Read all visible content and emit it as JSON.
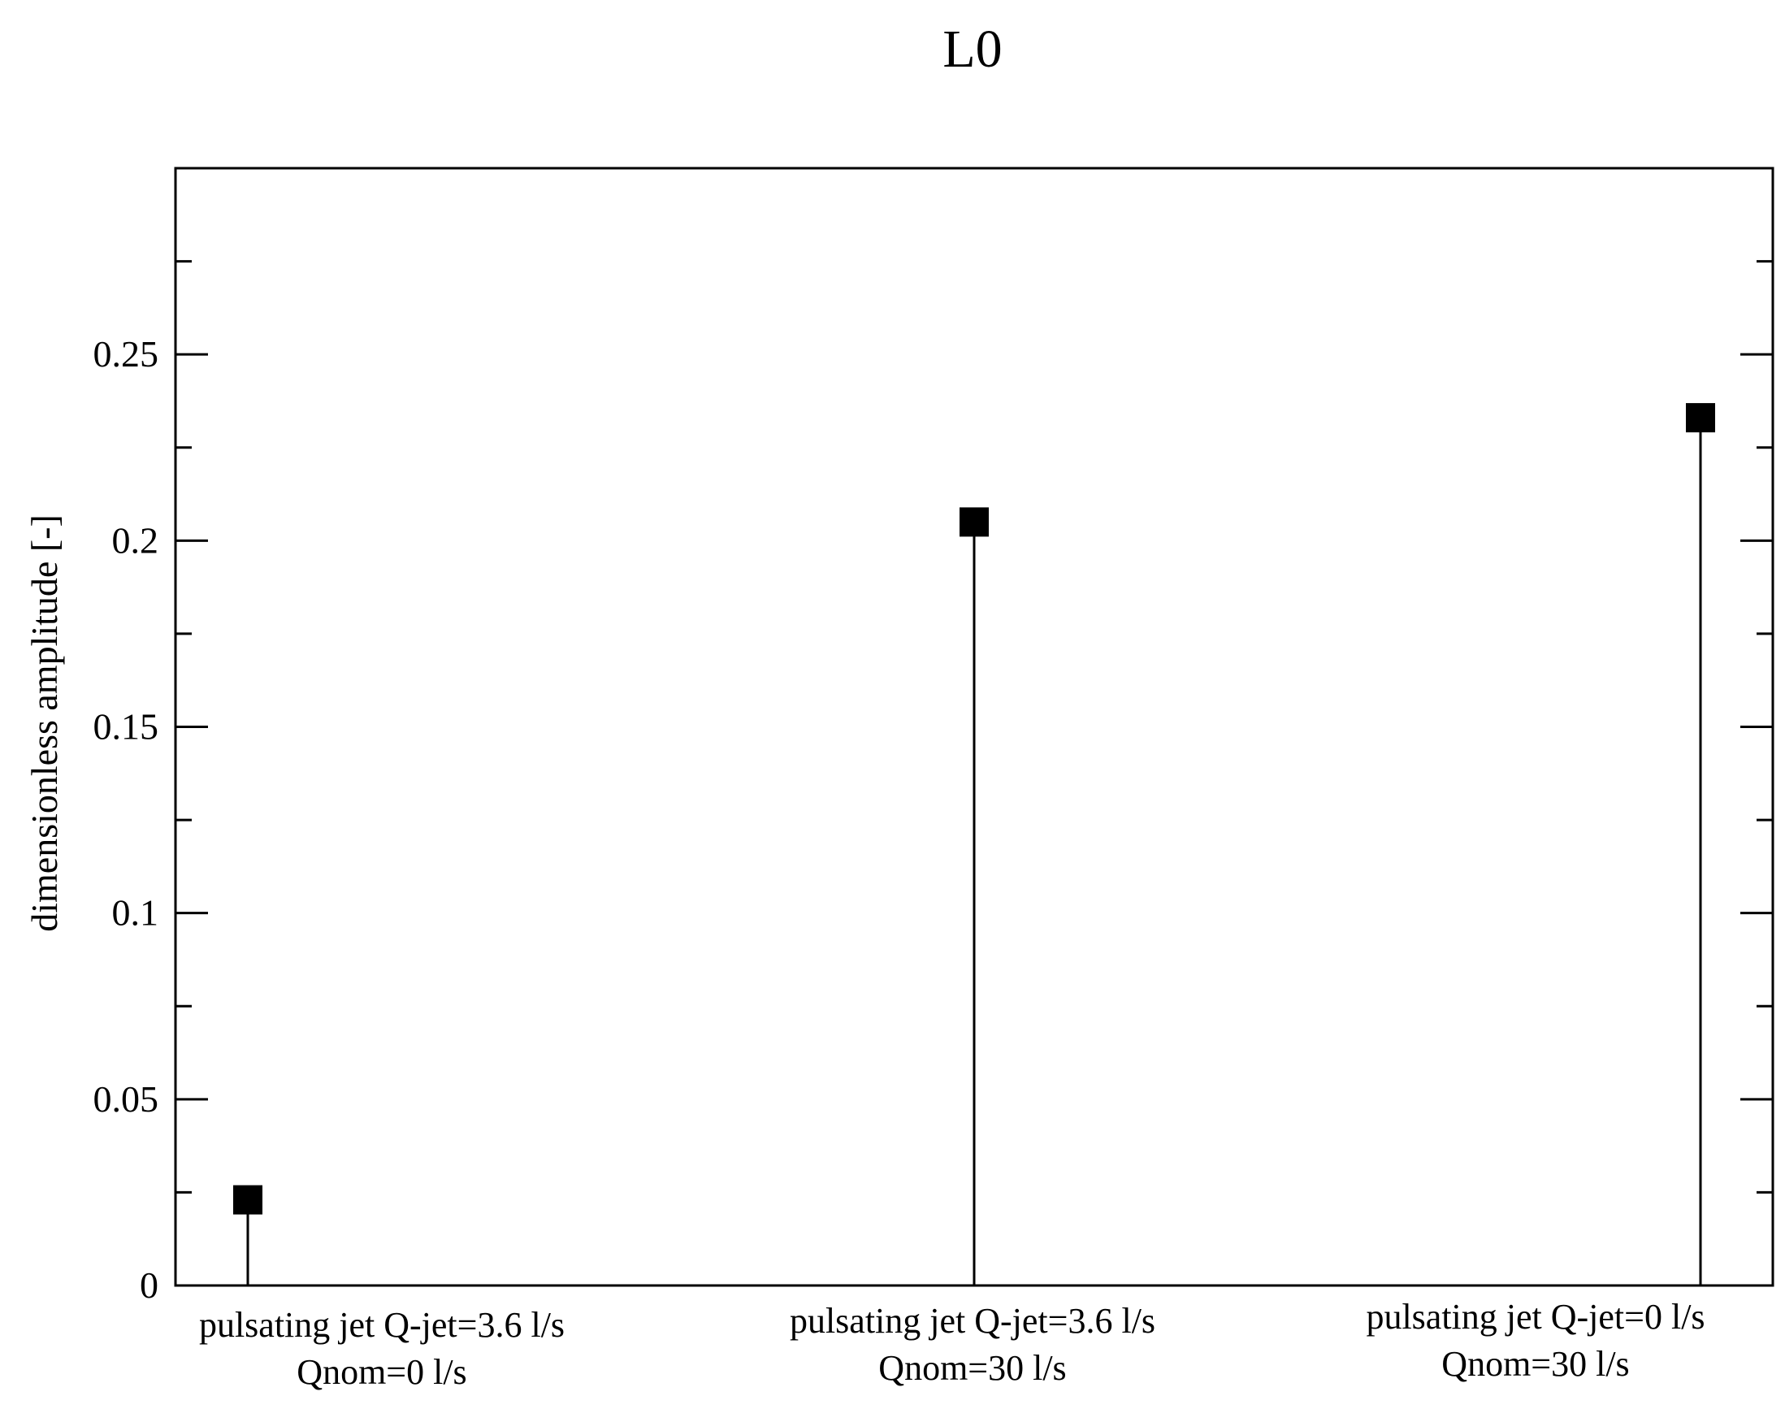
{
  "chart_data": {
    "type": "scatter",
    "style": "drop-line (stem) with square markers",
    "title": "L0",
    "xlabel": "",
    "ylabel": "dimensionless amplitude [-]",
    "ylim": [
      0,
      0.3
    ],
    "yticks": [
      "0",
      "0.05",
      "0.1",
      "0.15",
      "0.2",
      "0.25"
    ],
    "ytick_values": [
      0,
      0.05,
      0.1,
      0.15,
      0.2,
      0.25
    ],
    "y_minor_step": 0.025,
    "categories": [
      [
        "pulsating jet Q-jet=3.6 l/s",
        "Qnom=0 l/s"
      ],
      [
        "pulsating jet Q-jet=3.6 l/s",
        "Qnom=30 l/s"
      ],
      [
        "pulsating jet Q-jet=0 l/s",
        "Qnom=30 l/s"
      ]
    ],
    "values": [
      0.023,
      0.205,
      0.233
    ],
    "grid": false,
    "legend": "none",
    "marker_color": "#000000"
  }
}
